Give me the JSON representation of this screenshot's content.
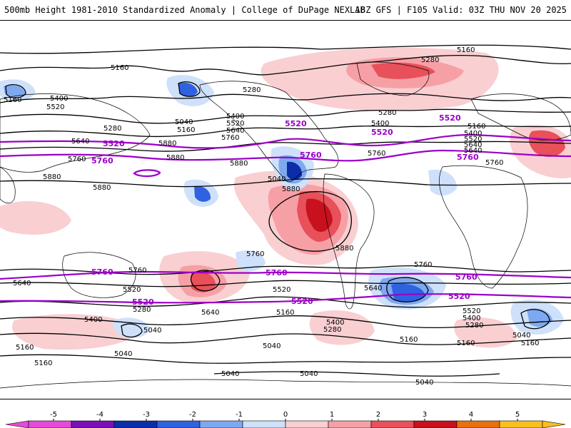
{
  "header": {
    "title": "500mb Height 1981-2010 Standardized Anomaly | College of DuPage NEXLAB",
    "run_info": "18Z GFS | F105 Valid: 03Z THU NOV 20 2025"
  },
  "contour_labels": {
    "black": [
      "5160",
      "5160",
      "5400",
      "5520",
      "5280",
      "5640",
      "5760",
      "5880",
      "5880",
      "5160",
      "5040",
      "5280",
      "5400",
      "5520",
      "5640",
      "5760",
      "5880",
      "5880",
      "5280",
      "5160",
      "5280",
      "5400",
      "5640",
      "5760",
      "5880",
      "5160",
      "5400",
      "5520",
      "5640",
      "5760",
      "5880",
      "5760",
      "5760",
      "5760",
      "5640",
      "5520",
      "5280",
      "5400",
      "5040",
      "5160",
      "5640",
      "5520",
      "5160",
      "5400",
      "5280",
      "5040",
      "5160",
      "5040",
      "5640",
      "5400",
      "5520",
      "5280",
      "5040",
      "5160",
      "5040",
      "5040",
      "5160",
      "5040",
      "5040",
      "5160",
      "5880"
    ],
    "purple": [
      "5520",
      "5760",
      "5520",
      "5760",
      "5520",
      "5760",
      "5760",
      "5520",
      "5760",
      "5520",
      "5760",
      "5520"
    ]
  },
  "colorbar": {
    "ticks": [
      "-5",
      "-4",
      "-3",
      "-2",
      "-1",
      "0",
      "1",
      "2",
      "3",
      "4",
      "5"
    ],
    "colors": {
      "m5": "#e34bd8",
      "m4": "#7a10b8",
      "m3": "#0b2ea8",
      "m2": "#2f62e0",
      "m1": "#7ea8f0",
      "m0": "#cfe0fa",
      "p0": "#f9cfd2",
      "p1": "#f6a0a5",
      "p2": "#e8505a",
      "p3": "#c8101e",
      "p4": "#e87010",
      "p5": "#f6c020"
    }
  }
}
